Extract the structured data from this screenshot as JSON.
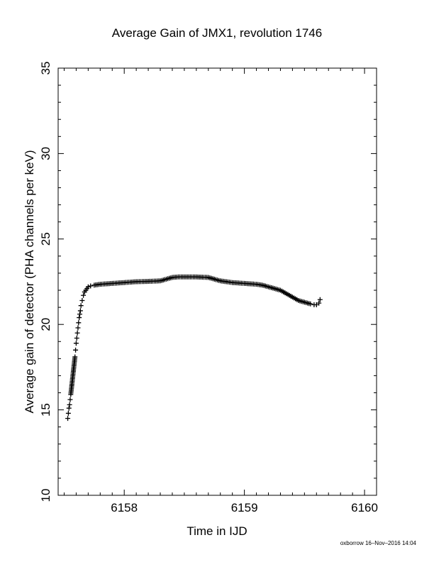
{
  "chart_data": {
    "type": "scatter",
    "title": "Average Gain of JMX1, revolution 1746",
    "xlabel": "Time in IJD",
    "ylabel": "Average gain of detector (PHA channels per keV)",
    "xlim": [
      6157.45,
      6160.1
    ],
    "ylim": [
      10,
      35
    ],
    "xticks": [
      6158,
      6159,
      6160
    ],
    "yticks": [
      10,
      15,
      20,
      25,
      30,
      35
    ],
    "marker": "plus",
    "grid": false,
    "series": [
      {
        "x": [
          6157.53,
          6157.535,
          6157.54,
          6157.545,
          6157.55,
          6157.555,
          6157.59,
          6157.595,
          6157.6,
          6157.605,
          6157.61,
          6157.615,
          6157.62,
          6157.625,
          6157.63,
          6157.635,
          6157.64,
          6157.65,
          6157.66,
          6157.67,
          6157.68,
          6157.69,
          6157.7,
          6157.72,
          6157.75,
          6157.8,
          6157.9,
          6158.0,
          6158.1,
          6158.2,
          6158.3,
          6158.35,
          6158.4,
          6158.45,
          6158.5,
          6158.6,
          6158.7,
          6158.75,
          6158.8,
          6158.85,
          6158.9,
          6159.0,
          6159.1,
          6159.15,
          6159.2,
          6159.3,
          6159.35,
          6159.4,
          6159.45,
          6159.5,
          6159.55,
          6159.58,
          6159.6,
          6159.62,
          6159.63
        ],
        "y": [
          14.5,
          14.8,
          15.1,
          15.3,
          15.6,
          15.9,
          18.1,
          18.5,
          18.9,
          19.2,
          19.5,
          19.8,
          20.1,
          20.4,
          20.6,
          20.8,
          21.1,
          21.4,
          21.7,
          21.9,
          22.0,
          22.1,
          22.2,
          22.25,
          22.3,
          22.35,
          22.4,
          22.45,
          22.5,
          22.52,
          22.55,
          22.65,
          22.75,
          22.78,
          22.78,
          22.78,
          22.75,
          22.65,
          22.55,
          22.5,
          22.45,
          22.4,
          22.35,
          22.3,
          22.2,
          22.0,
          21.8,
          21.6,
          21.4,
          21.3,
          21.2,
          21.15,
          21.15,
          21.25,
          21.45
        ]
      }
    ]
  },
  "footer": "oxborrow 16–Nov–2016 14:04"
}
